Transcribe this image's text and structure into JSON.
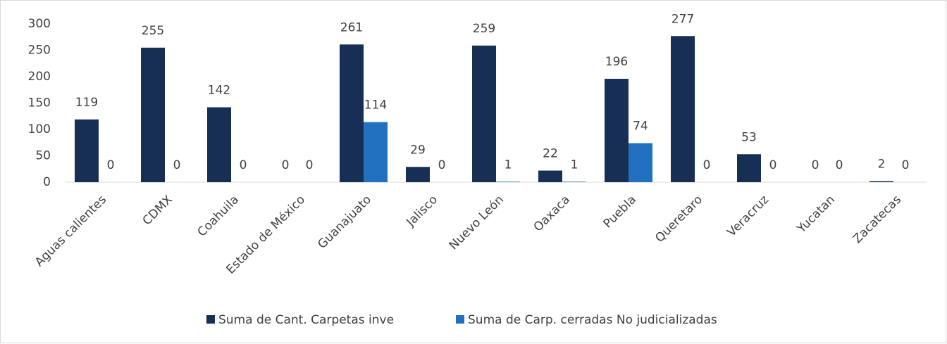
{
  "chart_data": {
    "type": "bar",
    "categories": [
      "Aguas calientes",
      "CDMX",
      "Coahuila",
      "Estado de México",
      "Guanajuato",
      "Jalisco",
      "Nuevo León",
      "Oaxaca",
      "Puebla",
      "Queretaro",
      "Veracruz",
      "Yucatan",
      "Zacatecas"
    ],
    "series": [
      {
        "name": "Suma de Cant. Carpetas inve",
        "color": "#172f55",
        "values": [
          119,
          255,
          142,
          0,
          261,
          29,
          259,
          22,
          196,
          277,
          53,
          0,
          2
        ]
      },
      {
        "name": "Suma de Carp. cerradas No judicializadas",
        "color": "#2271bf",
        "values": [
          0,
          0,
          0,
          0,
          114,
          0,
          1,
          1,
          74,
          0,
          0,
          0,
          0
        ]
      }
    ],
    "ylim": [
      0,
      300
    ],
    "yticks": [
      0,
      50,
      100,
      150,
      200,
      250,
      300
    ],
    "grid": false,
    "legend": "bottom"
  }
}
